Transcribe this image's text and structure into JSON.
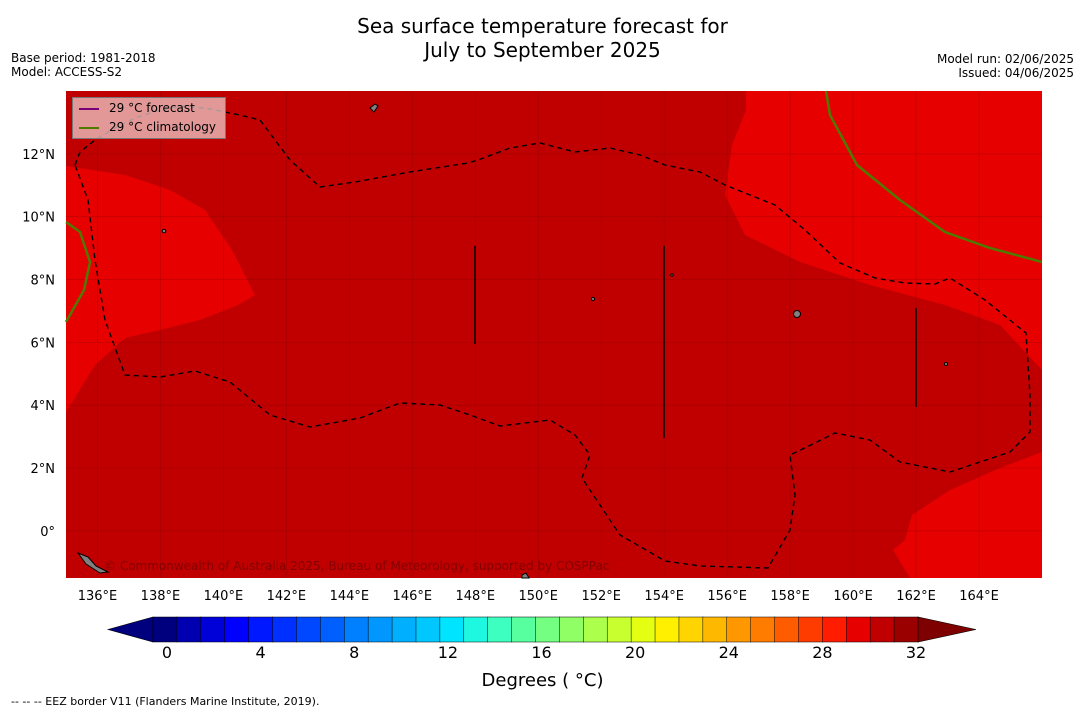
{
  "title": {
    "line1": "Sea surface temperature forecast for",
    "line2": "July to September 2025"
  },
  "meta": {
    "base_period": "Base period: 1981-2018",
    "model": "Model: ACCESS-S2",
    "model_run": "Model run: 02/06/2025",
    "issued": "Issued: 04/06/2025"
  },
  "legend": {
    "forecast": {
      "label": "29 °C  forecast",
      "color": "#7a007a"
    },
    "climatology": {
      "label": "29 °C  climatology",
      "color": "#4f7a00"
    }
  },
  "map": {
    "lon_ticks": [
      "136°E",
      "138°E",
      "140°E",
      "142°E",
      "144°E",
      "146°E",
      "148°E",
      "150°E",
      "152°E",
      "154°E",
      "156°E",
      "158°E",
      "160°E",
      "162°E",
      "164°E"
    ],
    "lat_ticks": [
      "12°N",
      "10°N",
      "8°N",
      "6°N",
      "4°N",
      "2°N",
      "0°"
    ],
    "lon_range": [
      135,
      166
    ],
    "lat_range": [
      -1.5,
      14
    ],
    "colors": {
      "warm_29_30": "#c00000",
      "warm_28_29": "#e60000",
      "land": "#808080",
      "eez": "#000000"
    },
    "copyright": "© Commonwealth of Australia 2025, Bureau of Meteorology, supported by COSPPac"
  },
  "colorbar": {
    "ticks": [
      "0",
      "4",
      "8",
      "12",
      "16",
      "20",
      "24",
      "28",
      "32"
    ],
    "title": "Degrees ( °C)",
    "colors": [
      "#00007f",
      "#0000b0",
      "#0000d8",
      "#0000ff",
      "#0018ff",
      "#0030ff",
      "#0048ff",
      "#0060ff",
      "#0080ff",
      "#0098ff",
      "#00b0ff",
      "#00c8ff",
      "#00e4ff",
      "#1ff8e0",
      "#3cffc0",
      "#58ff9f",
      "#74ff82",
      "#90ff66",
      "#acff4a",
      "#c8ff2e",
      "#e4ff12",
      "#fff000",
      "#ffd400",
      "#ffb800",
      "#ff9800",
      "#ff7c00",
      "#ff5c00",
      "#ff3c00",
      "#ff1c00",
      "#e60000",
      "#c00000",
      "#9a0000"
    ],
    "under_color": "#00007f",
    "over_color": "#7f0000"
  },
  "footnote": "--  --  -- EEZ border V11 (Flanders Marine Institute, 2019)."
}
